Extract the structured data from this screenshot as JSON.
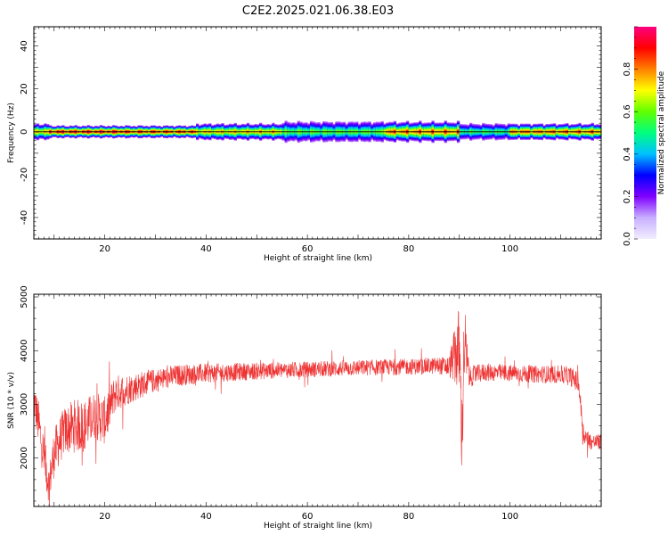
{
  "figure_title": "C2E2.2025.021.06.38.E03",
  "chart_data": [
    {
      "type": "heatmap",
      "xlabel": "Height of straight line (km)",
      "ylabel": "Frequency (Hz)",
      "xlim": [
        6,
        118
      ],
      "ylim": [
        -50,
        49
      ],
      "x_ticks": [
        20,
        40,
        60,
        80,
        100
      ],
      "y_ticks": [
        -40,
        -20,
        0,
        20,
        40
      ],
      "colorbar": {
        "label": "Normalized spectral amplitude",
        "range": [
          0.0,
          1.0
        ],
        "ticks": [
          "0.0",
          "0.2",
          "0.4",
          "0.6",
          "0.8"
        ],
        "tick_values": [
          0.0,
          0.2,
          0.4,
          0.6,
          0.8
        ],
        "colormap": [
          "#e8e0ff",
          "#8000ff",
          "#0000ff",
          "#00c0ff",
          "#00ff80",
          "#80ff00",
          "#ffff00",
          "#ff8000",
          "#ff0000",
          "#ff0080"
        ]
      },
      "band": {
        "center_hz": 0,
        "segments": [
          {
            "x": [
              6,
              9
            ],
            "halfwidth_hz": 4,
            "peak": 0.75
          },
          {
            "x": [
              9,
              24
            ],
            "halfwidth_hz": 3,
            "peak": 0.95
          },
          {
            "x": [
              24,
              38
            ],
            "halfwidth_hz": 3,
            "peak": 0.9
          },
          {
            "x": [
              38,
              55
            ],
            "halfwidth_hz": 4,
            "peak": 0.75
          },
          {
            "x": [
              55,
              75
            ],
            "halfwidth_hz": 5,
            "peak": 0.55
          },
          {
            "x": [
              75,
              90
            ],
            "halfwidth_hz": 5,
            "peak": 0.85
          },
          {
            "x": [
              90,
              100
            ],
            "halfwidth_hz": 4,
            "peak": 0.5
          },
          {
            "x": [
              100,
              118
            ],
            "halfwidth_hz": 4,
            "peak": 0.85
          }
        ]
      }
    },
    {
      "type": "line",
      "xlabel": "Height of straight line (km)",
      "ylabel": "SNR (10 * v/v)",
      "xlim": [
        6,
        118
      ],
      "ylim": [
        1100,
        5050
      ],
      "x_ticks": [
        20,
        40,
        60,
        80,
        100
      ],
      "y_ticks": [
        2000,
        3000,
        4000,
        5000
      ],
      "line_color": "#ee3333",
      "envelope": {
        "x": [
          6,
          7,
          8,
          9,
          10,
          12,
          14,
          16,
          18,
          20,
          22,
          25,
          30,
          35,
          40,
          50,
          60,
          70,
          80,
          86,
          88,
          89,
          90,
          90.5,
          91,
          91.5,
          92,
          93,
          95,
          100,
          105,
          110,
          112,
          113.5,
          114.5,
          116,
          118
        ],
        "mean": [
          3100,
          2600,
          2000,
          1500,
          2100,
          2500,
          2600,
          2600,
          2800,
          2700,
          3200,
          3300,
          3450,
          3550,
          3580,
          3620,
          3650,
          3680,
          3700,
          3720,
          3700,
          3900,
          4000,
          2400,
          4200,
          3800,
          3500,
          3550,
          3600,
          3580,
          3560,
          3560,
          3520,
          3400,
          2450,
          2300,
          2300
        ],
        "amp": [
          350,
          450,
          450,
          350,
          450,
          450,
          500,
          500,
          450,
          450,
          350,
          280,
          220,
          200,
          180,
          160,
          150,
          150,
          150,
          160,
          200,
          500,
          900,
          800,
          800,
          400,
          200,
          180,
          170,
          160,
          160,
          170,
          180,
          200,
          180,
          150,
          150
        ]
      }
    }
  ]
}
